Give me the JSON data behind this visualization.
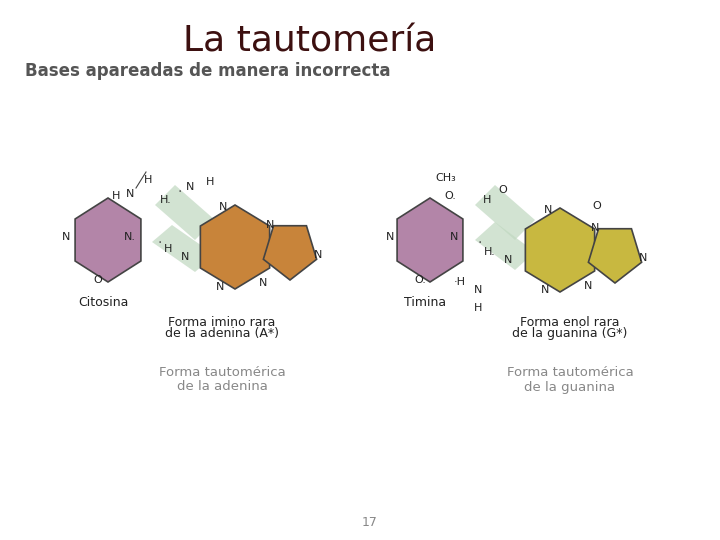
{
  "title": "La tautomería",
  "subtitle": "Bases apareadas de manera incorrecta",
  "title_fontsize": 26,
  "subtitle_fontsize": 12,
  "title_color": "#3d1010",
  "subtitle_color": "#555555",
  "bg_color": "#ffffff",
  "page_number": "17",
  "left_label1": "Forma imino rara",
  "left_label2": "de la adenina (A*)",
  "right_label1": "Forma enol rara",
  "right_label2": "de la guanina (G*)",
  "citosina_label": "Citosina",
  "timina_label": "Timina",
  "bottom_left": "Forma tautomérica\nde la adenina",
  "bottom_right": "Forma tautomérica\nde la guanina",
  "purple_color": "#b385a8",
  "orange_color": "#c8843a",
  "yellow_color": "#c8b840",
  "green_color": "#c0d8c0",
  "text_color": "#222222",
  "gray_color": "#888888",
  "dark_color": "#222222"
}
